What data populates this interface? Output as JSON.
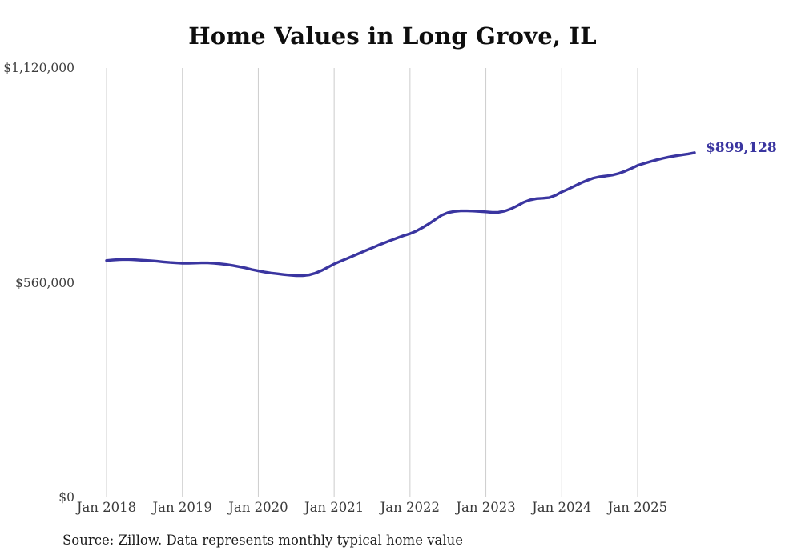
{
  "chart_data": {
    "type": "line",
    "title": "Home Values in Long Grove, IL",
    "source_note": "Source: Zillow. Data represents monthly typical home value",
    "x_unit": "month",
    "x_start": "Jan 2018",
    "x_end": "Oct 2025",
    "ylim": [
      0,
      1120000
    ],
    "grid": "vertical-only",
    "line_color": "#3a35a0",
    "grid_color": "#cccccc",
    "end_label": "$899,128",
    "final_value": 899128,
    "y_ticks": [
      {
        "label": "$0",
        "value": 0
      },
      {
        "label": "$560,000",
        "value": 560000
      },
      {
        "label": "$1,120,000",
        "value": 1120000
      }
    ],
    "x_ticks": [
      {
        "label": "Jan 2018",
        "month": 0
      },
      {
        "label": "Jan 2019",
        "month": 12
      },
      {
        "label": "Jan 2020",
        "month": 24
      },
      {
        "label": "Jan 2021",
        "month": 36
      },
      {
        "label": "Jan 2022",
        "month": 48
      },
      {
        "label": "Jan 2023",
        "month": 60
      },
      {
        "label": "Jan 2024",
        "month": 72
      },
      {
        "label": "Jan 2025",
        "month": 84
      }
    ],
    "values": [
      618000,
      619500,
      620500,
      621000,
      620500,
      619500,
      618500,
      617500,
      616000,
      614500,
      613000,
      612000,
      611000,
      611000,
      611500,
      612000,
      612000,
      611000,
      609500,
      607500,
      605000,
      602000,
      598500,
      594500,
      591000,
      588000,
      585500,
      583500,
      581500,
      580000,
      578500,
      578500,
      580500,
      585000,
      592000,
      600500,
      609000,
      616000,
      623000,
      630000,
      637000,
      644000,
      651000,
      658000,
      664500,
      671000,
      677000,
      683000,
      688000,
      695000,
      704000,
      714000,
      725000,
      736000,
      743000,
      746000,
      747500,
      747500,
      747000,
      746000,
      745000,
      743500,
      744000,
      747000,
      753000,
      761000,
      770000,
      776000,
      779500,
      780500,
      782000,
      788000,
      797000,
      804000,
      812000,
      820000,
      827000,
      833000,
      836500,
      838500,
      841000,
      845000,
      851000,
      858000,
      866000,
      871000,
      876000,
      880500,
      884500,
      888000,
      891000,
      893500,
      896000,
      899128
    ]
  }
}
